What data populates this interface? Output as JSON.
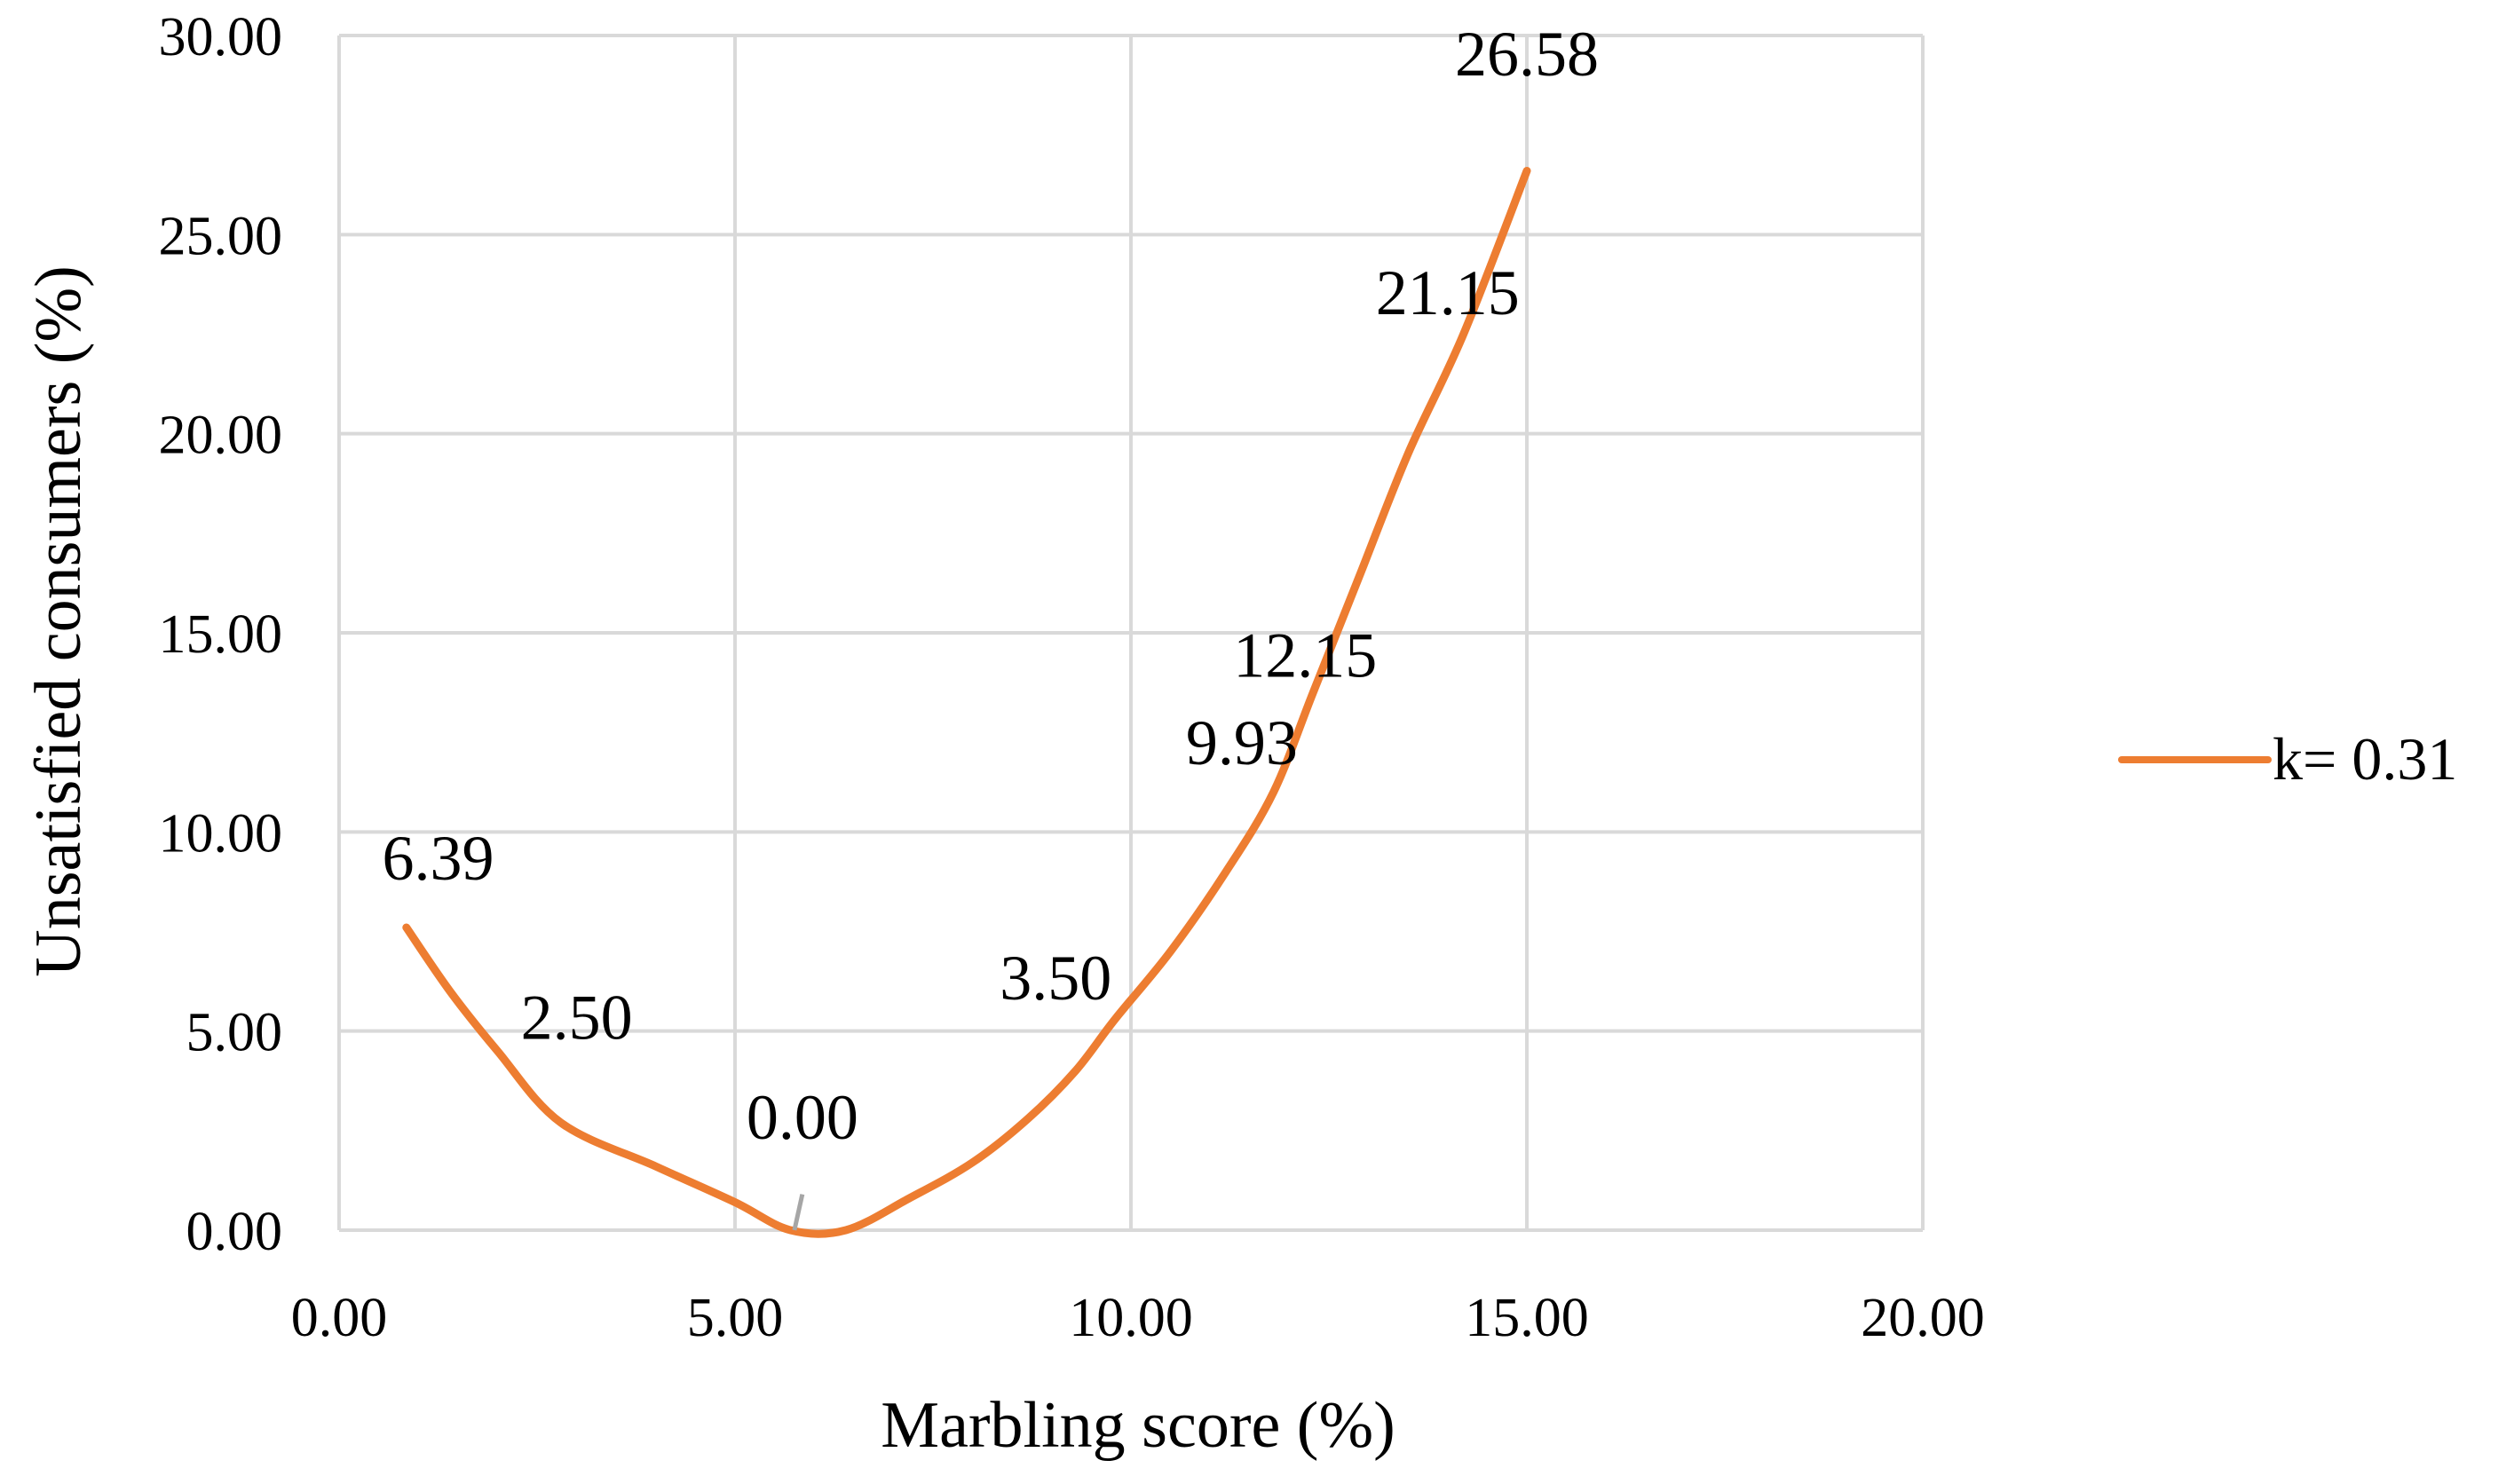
{
  "chart_data": {
    "type": "line",
    "title": "",
    "xlabel": "Marbling score (%)",
    "ylabel": "Unsatisfied consumers (%)",
    "xlim": [
      0,
      20
    ],
    "ylim": [
      0,
      30
    ],
    "x_ticks": [
      "0.00",
      "5.00",
      "10.00",
      "15.00",
      "20.00"
    ],
    "y_ticks": [
      "0.00",
      "5.00",
      "10.00",
      "15.00",
      "20.00",
      "25.00",
      "30.00"
    ],
    "grid": true,
    "legend_position": "right",
    "series": [
      {
        "name": "k= 0.31",
        "color": "#ED7D31",
        "points": [
          {
            "x": 0.85,
            "y": 7.6
          },
          {
            "x": 1.4,
            "y": 6.0
          },
          {
            "x": 2.0,
            "y": 4.5
          },
          {
            "x": 2.8,
            "y": 2.7
          },
          {
            "x": 4.0,
            "y": 1.6
          },
          {
            "x": 5.0,
            "y": 0.7
          },
          {
            "x": 5.7,
            "y": 0.0
          },
          {
            "x": 6.4,
            "y": 0.0
          },
          {
            "x": 7.2,
            "y": 0.8
          },
          {
            "x": 8.0,
            "y": 1.7
          },
          {
            "x": 8.7,
            "y": 2.8
          },
          {
            "x": 9.3,
            "y": 4.0
          },
          {
            "x": 9.8,
            "y": 5.3
          },
          {
            "x": 10.5,
            "y": 7.0
          },
          {
            "x": 11.2,
            "y": 9.0
          },
          {
            "x": 11.8,
            "y": 11.0
          },
          {
            "x": 12.3,
            "y": 13.5
          },
          {
            "x": 12.9,
            "y": 16.5
          },
          {
            "x": 13.5,
            "y": 19.5
          },
          {
            "x": 14.2,
            "y": 22.5
          },
          {
            "x": 15.0,
            "y": 26.6
          }
        ]
      }
    ],
    "data_labels": [
      {
        "text": "6.39",
        "x": 1.25,
        "y": 8.8
      },
      {
        "text": "2.50",
        "x": 3.0,
        "y": 4.8
      },
      {
        "text": "0.00",
        "x": 5.85,
        "y": 2.3
      },
      {
        "text": "3.50",
        "x": 9.05,
        "y": 5.8
      },
      {
        "text": "9.93",
        "x": 11.4,
        "y": 11.7
      },
      {
        "text": "12.15",
        "x": 12.2,
        "y": 13.9
      },
      {
        "text": "21.15",
        "x": 14.0,
        "y": 23.0
      },
      {
        "text": "26.58",
        "x": 15.0,
        "y": 29.0
      }
    ],
    "leader_line": {
      "from": {
        "x": 5.85,
        "y": 0.9
      },
      "to": {
        "x": 5.75,
        "y": 0.0
      }
    }
  }
}
